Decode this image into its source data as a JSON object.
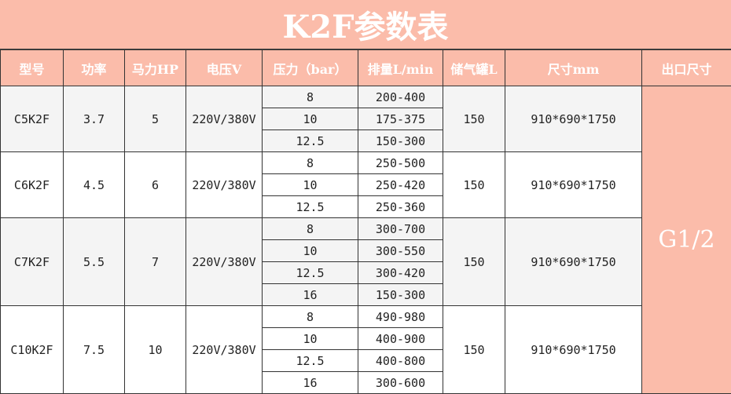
{
  "title": "K2F参数表",
  "headers": {
    "model": "型号",
    "power": "功率",
    "hp": "马力HP",
    "voltage": "电压V",
    "pressure": "压力（bar）",
    "flow": "排量L/min",
    "tank": "储气罐L",
    "dimensions": "尺寸mm",
    "outlet": "出口尺寸"
  },
  "outlet_size": "G1/2",
  "models": [
    {
      "model": "C5K2F",
      "power": "3.7",
      "hp": "5",
      "voltage": "220V/380V",
      "tank": "150",
      "dimensions": "910*690*1750",
      "rows": [
        {
          "pressure": "8",
          "flow": "200-400"
        },
        {
          "pressure": "10",
          "flow": "175-375"
        },
        {
          "pressure": "12.5",
          "flow": "150-300"
        }
      ]
    },
    {
      "model": "C6K2F",
      "power": "4.5",
      "hp": "6",
      "voltage": "220V/380V",
      "tank": "150",
      "dimensions": "910*690*1750",
      "rows": [
        {
          "pressure": "8",
          "flow": "250-500"
        },
        {
          "pressure": "10",
          "flow": "250-420"
        },
        {
          "pressure": "12.5",
          "flow": "250-360"
        }
      ]
    },
    {
      "model": "C7K2F",
      "power": "5.5",
      "hp": "7",
      "voltage": "220V/380V",
      "tank": "150",
      "dimensions": "910*690*1750",
      "rows": [
        {
          "pressure": "8",
          "flow": "300-700"
        },
        {
          "pressure": "10",
          "flow": "300-550"
        },
        {
          "pressure": "12.5",
          "flow": "300-420"
        },
        {
          "pressure": "16",
          "flow": "150-300"
        }
      ]
    },
    {
      "model": "C10K2F",
      "power": "7.5",
      "hp": "10",
      "voltage": "220V/380V",
      "tank": "150",
      "dimensions": "910*690*1750",
      "rows": [
        {
          "pressure": "8",
          "flow": "490-980"
        },
        {
          "pressure": "10",
          "flow": "400-900"
        },
        {
          "pressure": "12.5",
          "flow": "400-800"
        },
        {
          "pressure": "16",
          "flow": "300-600"
        }
      ]
    }
  ]
}
